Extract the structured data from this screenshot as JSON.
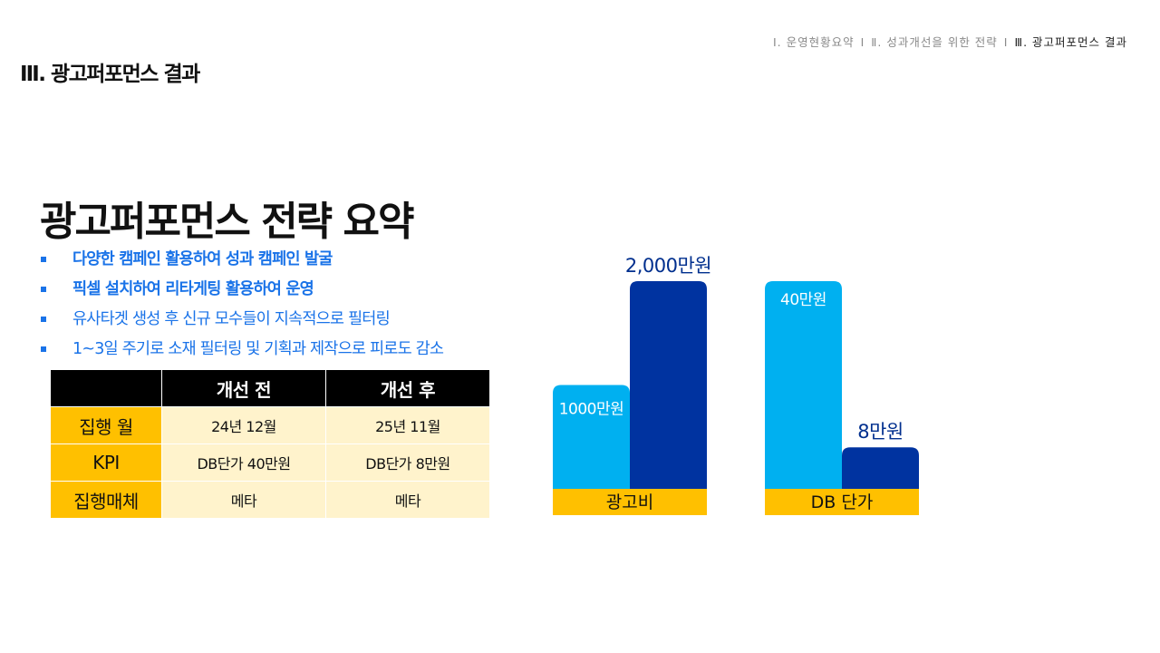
{
  "nav": {
    "item1": "Ⅰ. 운영현황요약",
    "item2": "Ⅱ. 성과개선을 위한 전략",
    "item3": "Ⅲ. 광고퍼포먼스 결과",
    "separator": "I"
  },
  "header": {
    "section_title": "Ⅲ. 광고퍼포먼스 결과"
  },
  "main": {
    "title": "광고퍼포먼스 전략 요약",
    "bullets": [
      "다양한 캠페인 활용하여 성과 캠페인 발굴",
      "픽셀 설치하여 리타게팅 활용하여 운영",
      "유사타겟 생성 후 신규 모수들이 지속적으로 필터링",
      "1~3일 주기로 소재 필터링 및 기획과 제작으로 피로도 감소"
    ]
  },
  "table": {
    "headers": [
      "",
      "개선 전",
      "개선 후"
    ],
    "rows": [
      {
        "label": "집행 월",
        "before": "24년 12월",
        "after": "25년 11월"
      },
      {
        "label": "KPI",
        "before": "DB단가 40만원",
        "after": "DB단가 8만원"
      },
      {
        "label": "집행매체",
        "before": "메타",
        "after": "메타"
      }
    ]
  },
  "colors": {
    "before_bar": "#00b0f0",
    "after_bar": "#0033a0",
    "category_band": "#ffc000",
    "bullet_blue": "#1a73e8",
    "label_dark": "#002f8e"
  },
  "chart_data": [
    {
      "type": "bar",
      "category": "광고비",
      "series": [
        {
          "name": "개선 전",
          "value": 1000,
          "label": "1000만원"
        },
        {
          "name": "개선 후",
          "value": 2000,
          "label": "2,000만원"
        }
      ],
      "unit": "만원",
      "ylim": [
        0,
        2000
      ]
    },
    {
      "type": "bar",
      "category": "DB 단가",
      "series": [
        {
          "name": "개선 전",
          "value": 40,
          "label": "40만원"
        },
        {
          "name": "개선 후",
          "value": 8,
          "label": "8만원"
        }
      ],
      "unit": "만원",
      "ylim": [
        0,
        40
      ]
    }
  ]
}
